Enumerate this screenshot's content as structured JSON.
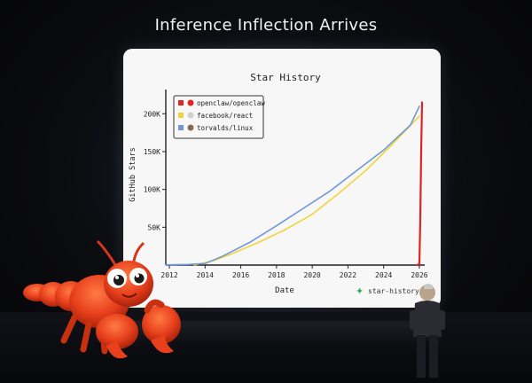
{
  "slide": {
    "title": "Inference Inflection Arrives"
  },
  "chart_data": {
    "type": "line",
    "title": "Star History",
    "xlabel": "Date",
    "ylabel": "GitHub Stars",
    "x_range": [
      2011.8,
      2026.3
    ],
    "ylim": [
      0,
      225000
    ],
    "x_ticks": [
      {
        "value": 2012,
        "label": "2012"
      },
      {
        "value": 2014,
        "label": "2014"
      },
      {
        "value": 2016,
        "label": "2016"
      },
      {
        "value": 2018,
        "label": "2018"
      },
      {
        "value": 2020,
        "label": "2020"
      },
      {
        "value": 2022,
        "label": "2022"
      },
      {
        "value": 2024,
        "label": "2024"
      },
      {
        "value": 2026,
        "label": "2026"
      }
    ],
    "y_ticks": [
      {
        "value": 50000,
        "label": "50K"
      },
      {
        "value": 100000,
        "label": "100K"
      },
      {
        "value": 150000,
        "label": "150K"
      },
      {
        "value": 200000,
        "label": "200K"
      }
    ],
    "legend_position": "top-left",
    "grid": false,
    "series": [
      {
        "name": "openclaw/openclaw",
        "color": "#e02424",
        "x": [
          2025.9,
          2026.0,
          2026.05,
          2026.1,
          2026.15
        ],
        "y": [
          0,
          2000,
          60000,
          150000,
          215000
        ]
      },
      {
        "name": "facebook/react",
        "color": "#f2d43a",
        "x": [
          2013.4,
          2014.5,
          2015.5,
          2017,
          2018.5,
          2020,
          2021.5,
          2023,
          2024.5,
          2026.0
        ],
        "y": [
          0,
          6000,
          15000,
          30000,
          47000,
          67000,
          95000,
          125000,
          160000,
          197000
        ]
      },
      {
        "name": "torvalds/linux",
        "color": "#6f97d8",
        "x": [
          2011.8,
          2013,
          2014,
          2015,
          2016.5,
          2018,
          2019.5,
          2021,
          2022.5,
          2024,
          2025.5,
          2026.0
        ],
        "y": [
          200,
          800,
          2000,
          12000,
          30000,
          52000,
          75000,
          98000,
          125000,
          152000,
          185000,
          210000
        ]
      }
    ]
  },
  "watermark": {
    "text": "star-history.c"
  }
}
